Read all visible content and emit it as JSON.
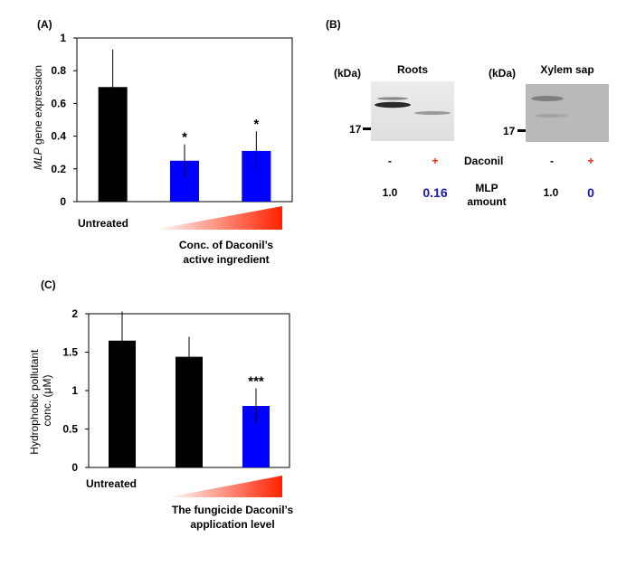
{
  "panels": {
    "A": {
      "label": "(A)",
      "chart_data": {
        "type": "bar",
        "ylabel_italic": "MLP",
        "ylabel_rest": " gene expression",
        "ylim": [
          0,
          1
        ],
        "yticks": [
          "0",
          "0.2",
          "0.4",
          "0.6",
          "0.8",
          "1"
        ],
        "bars": [
          {
            "value": 0.7,
            "error": 0.23,
            "color": "#000000",
            "annotation": ""
          },
          {
            "value": 0.25,
            "error": 0.1,
            "color": "#0000ff",
            "annotation": "*"
          },
          {
            "value": 0.31,
            "error": 0.12,
            "color": "#0000ff",
            "annotation": "*"
          }
        ],
        "untreated_label": "Untreated",
        "gradient_caption": [
          "Conc. of Daconil’s",
          "active ingredient"
        ]
      }
    },
    "B": {
      "label": "(B)",
      "kda_label": "(kDa)",
      "marker": "17",
      "blots": [
        {
          "title": "Roots",
          "minus": "-",
          "plus": "+",
          "amount_minus": "1.0",
          "amount_plus": "0.16"
        },
        {
          "title": "Xylem sap",
          "minus": "-",
          "plus": "+",
          "amount_minus": "1.0",
          "amount_plus": "0"
        }
      ],
      "row_label_treatment": "Daconil",
      "row_label_amount": [
        "MLP",
        "amount"
      ],
      "colors": {
        "plus": "#ff2200",
        "amount_highlight": "#1a1aaa"
      }
    },
    "C": {
      "label": "(C)",
      "chart_data": {
        "type": "bar",
        "ylabel": [
          "Hydrophobic pollutant",
          "conc. (μM)"
        ],
        "ylim": [
          0,
          2
        ],
        "yticks": [
          "0",
          "0.5",
          "1",
          "1.5",
          "2"
        ],
        "bars": [
          {
            "value": 1.65,
            "error": 0.38,
            "color": "#000000",
            "annotation": ""
          },
          {
            "value": 1.44,
            "error": 0.26,
            "color": "#000000",
            "annotation": ""
          },
          {
            "value": 0.8,
            "error": 0.23,
            "color": "#0000ff",
            "annotation": "***"
          }
        ],
        "untreated_label": "Untreated",
        "gradient_caption": [
          "The fungicide Daconil’s",
          "application level"
        ]
      }
    }
  }
}
